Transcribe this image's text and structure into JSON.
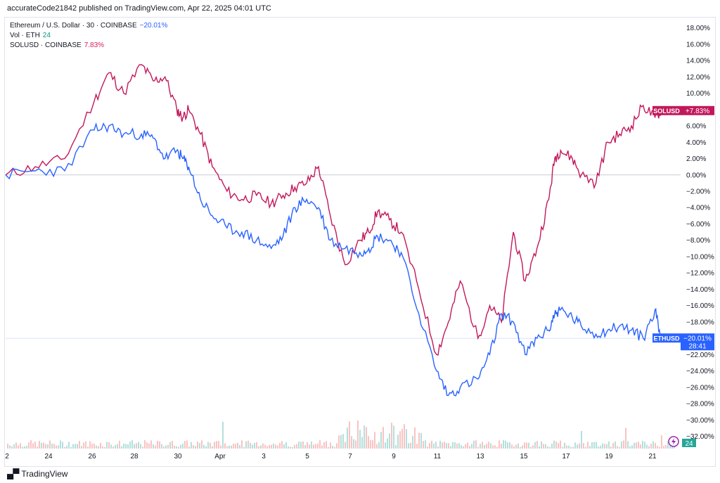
{
  "header": {
    "published": "accurateCode21842 published on TradingView.com, Apr 22, 2025 04:01 UTC"
  },
  "legend": {
    "eth_label": "Ethereum / U.S. Dollar · 30 · COINBASE",
    "eth_change": "−20.01%",
    "vol_label": "Vol · ETH",
    "vol_value": "24",
    "sol_label": "SOLUSD · COINBASE",
    "sol_change": "7.83%"
  },
  "footer": {
    "brand": "TradingView"
  },
  "chart_data": {
    "type": "line",
    "x_ticks": [
      "2",
      "24",
      "26",
      "28",
      "30",
      "Apr",
      "3",
      "5",
      "7",
      "9",
      "11",
      "13",
      "15",
      "17",
      "19",
      "21"
    ],
    "y_ticks": [
      "18.00%",
      "16.00%",
      "14.00%",
      "12.00%",
      "10.00%",
      "8.00%",
      "6.00%",
      "4.00%",
      "2.00%",
      "0.00%",
      "−2.00%",
      "−4.00%",
      "−6.00%",
      "−8.00%",
      "−10.00%",
      "−12.00%",
      "−14.00%",
      "−16.00%",
      "−18.00%",
      "−20.00%",
      "−22.00%",
      "−24.00%",
      "−26.00%",
      "−28.00%",
      "−30.00%",
      "−32.00%"
    ],
    "ylim": [
      -33.5,
      19
    ],
    "series": [
      {
        "name": "SOLUSD",
        "color": "#c2185b",
        "x": [
          0,
          1,
          2,
          3,
          3.5,
          4,
          4.6,
          5,
          5.4,
          5.8,
          6,
          6.2,
          6.6,
          7,
          7.5,
          8,
          8.5,
          9,
          9.4,
          9.8,
          10.2,
          10.6,
          11,
          11.5,
          12,
          12.3,
          12.6,
          13,
          13.4,
          14,
          14.6,
          15,
          15.4,
          16,
          16.4,
          16.8,
          17.2,
          17.6,
          18,
          18.4,
          18.6,
          18.8,
          19.2,
          19.5,
          20,
          20.4,
          20.8,
          21.2,
          21.6,
          22,
          22.2
        ],
        "values": [
          0,
          1,
          2,
          9,
          12.5,
          10,
          13.5,
          11.5,
          12,
          8,
          7,
          8,
          5,
          1,
          -2,
          -3,
          -2.5,
          -3.5,
          -2.5,
          -1.5,
          -1,
          1,
          -5,
          -11,
          -8,
          -7,
          -4.5,
          -5.5,
          -7,
          -14,
          -22,
          -18,
          -13,
          -20,
          -16,
          -18,
          -7,
          -13,
          -9,
          -3,
          2,
          3,
          2,
          0,
          -1,
          4,
          5,
          6,
          8.5,
          7,
          7.83
        ]
      },
      {
        "name": "ETHUSD",
        "color": "#2962ff",
        "x": [
          0,
          1,
          2,
          3,
          3.5,
          4,
          4.6,
          5,
          5.4,
          5.8,
          6,
          6.2,
          6.6,
          7,
          7.5,
          8,
          8.5,
          9,
          9.4,
          9.8,
          10.2,
          10.6,
          11,
          11.5,
          12,
          12.3,
          12.6,
          13,
          13.4,
          14,
          14.6,
          15,
          15.4,
          16,
          16.4,
          16.8,
          17.2,
          17.6,
          18,
          18.4,
          18.6,
          18.8,
          19.2,
          19.5,
          20,
          20.4,
          20.8,
          21.2,
          21.6,
          22,
          22.2
        ],
        "values": [
          0,
          0.5,
          0.5,
          5.5,
          6,
          5,
          5,
          4.5,
          2,
          3,
          2,
          1,
          -3,
          -5,
          -6.5,
          -7,
          -8,
          -9,
          -7.5,
          -4,
          -3,
          -4,
          -8,
          -9,
          -9.5,
          -9,
          -7.5,
          -8,
          -9.5,
          -17,
          -24,
          -27,
          -26,
          -25,
          -22,
          -17,
          -18,
          -22,
          -20,
          -19,
          -17,
          -16.5,
          -17.5,
          -18.5,
          -19.5,
          -19,
          -18.5,
          -19,
          -20,
          -16.5,
          -20.01
        ]
      }
    ],
    "end_labels": [
      {
        "series": "SOLUSD",
        "text": "SOLUSD",
        "value_text": "+7.83%",
        "value": 7.83,
        "color": "#c2185b"
      },
      {
        "series": "ETHUSD",
        "text": "ETHUSD",
        "value_text": "−20.01%",
        "countdown": "28:41",
        "value": -20.01,
        "color": "#2962ff"
      }
    ],
    "volume_badge": {
      "text": "24",
      "color": "#26a69a"
    }
  }
}
